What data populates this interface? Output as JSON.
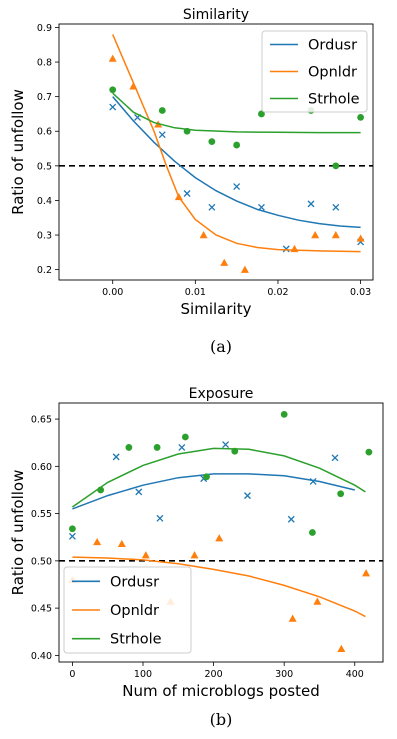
{
  "chart_data": [
    {
      "type": "scatter",
      "title": "Similarity",
      "xlabel": "Similarity",
      "ylabel": "Ratio of unfollow",
      "caption": "(a)",
      "xlim": [
        -0.0065,
        0.0315
      ],
      "ylim": [
        0.17,
        0.91
      ],
      "xticks": [
        "0.00",
        "0.01",
        "0.02",
        "0.03"
      ],
      "xtick_values": [
        0,
        0.01,
        0.02,
        0.03
      ],
      "yticks": [
        "0.2",
        "0.3",
        "0.4",
        "0.5",
        "0.6",
        "0.7",
        "0.8",
        "0.9"
      ],
      "ytick_values": [
        0.2,
        0.3,
        0.4,
        0.5,
        0.6,
        0.7,
        0.8,
        0.9
      ],
      "reference_line": 0.5,
      "legend_position": "top-right",
      "series": [
        {
          "name": "Ordusr",
          "color": "#1f77b4",
          "marker": "x",
          "x": [
            0.0,
            0.003,
            0.006,
            0.009,
            0.012,
            0.015,
            0.018,
            0.021,
            0.024,
            0.027,
            0.03
          ],
          "y": [
            0.67,
            0.64,
            0.59,
            0.42,
            0.38,
            0.44,
            0.38,
            0.26,
            0.39,
            0.38,
            0.28
          ],
          "fit_x": [
            0.0,
            0.0025,
            0.005,
            0.0075,
            0.01,
            0.0125,
            0.015,
            0.0175,
            0.02,
            0.0225,
            0.025,
            0.0275,
            0.03
          ],
          "fit_y": [
            0.7,
            0.63,
            0.568,
            0.513,
            0.466,
            0.428,
            0.398,
            0.374,
            0.357,
            0.343,
            0.333,
            0.326,
            0.322
          ]
        },
        {
          "name": "Opnldr",
          "color": "#ff7f0e",
          "marker": "^",
          "x": [
            0.0,
            0.0025,
            0.0055,
            0.008,
            0.011,
            0.0135,
            0.016,
            0.022,
            0.0245,
            0.027,
            0.03
          ],
          "y": [
            0.81,
            0.73,
            0.62,
            0.41,
            0.3,
            0.22,
            0.2,
            0.26,
            0.3,
            0.3,
            0.29
          ],
          "fit_x": [
            0.0,
            0.0025,
            0.005,
            0.0065,
            0.008,
            0.01,
            0.0125,
            0.015,
            0.0175,
            0.02,
            0.025,
            0.03
          ],
          "fit_y": [
            0.88,
            0.74,
            0.6,
            0.5,
            0.41,
            0.345,
            0.3,
            0.276,
            0.264,
            0.258,
            0.254,
            0.252
          ]
        },
        {
          "name": "Strhole",
          "color": "#2ca02c",
          "marker": "o",
          "x": [
            0.0,
            0.006,
            0.009,
            0.012,
            0.015,
            0.018,
            0.024,
            0.027,
            0.03
          ],
          "y": [
            0.72,
            0.66,
            0.6,
            0.57,
            0.56,
            0.65,
            0.66,
            0.5,
            0.64
          ],
          "fit_x": [
            0.0,
            0.0025,
            0.005,
            0.0075,
            0.01,
            0.015,
            0.02,
            0.025,
            0.03
          ],
          "fit_y": [
            0.71,
            0.655,
            0.625,
            0.61,
            0.603,
            0.598,
            0.597,
            0.596,
            0.596
          ]
        }
      ]
    },
    {
      "type": "scatter",
      "title": "Exposure",
      "xlabel": "Num of microblogs posted",
      "ylabel": "Ratio of unfollow",
      "caption": "(b)",
      "xlim": [
        -19,
        440
      ],
      "ylim": [
        0.393,
        0.667
      ],
      "xticks": [
        "0",
        "100",
        "200",
        "300",
        "400"
      ],
      "xtick_values": [
        0,
        100,
        200,
        300,
        400
      ],
      "yticks": [
        "0.40",
        "0.45",
        "0.50",
        "0.55",
        "0.60",
        "0.65"
      ],
      "ytick_values": [
        0.4,
        0.45,
        0.5,
        0.55,
        0.6,
        0.65
      ],
      "reference_line": 0.5,
      "legend_position": "bottom-left",
      "series": [
        {
          "name": "Ordusr",
          "color": "#1f77b4",
          "marker": "x",
          "x": [
            0,
            62,
            94,
            124,
            155,
            186,
            217,
            248,
            310,
            341,
            372
          ],
          "y": [
            0.526,
            0.61,
            0.573,
            0.545,
            0.62,
            0.587,
            0.623,
            0.569,
            0.544,
            0.584,
            0.609
          ],
          "fit_x": [
            0,
            50,
            100,
            150,
            200,
            250,
            300,
            350,
            400
          ],
          "fit_y": [
            0.555,
            0.569,
            0.58,
            0.588,
            0.592,
            0.592,
            0.59,
            0.584,
            0.575
          ]
        },
        {
          "name": "Opnldr",
          "color": "#ff7f0e",
          "marker": "^",
          "x": [
            0,
            35,
            70,
            104,
            139,
            173,
            208,
            312,
            347,
            381,
            416
          ],
          "y": [
            0.48,
            0.52,
            0.518,
            0.506,
            0.457,
            0.506,
            0.524,
            0.439,
            0.457,
            0.407,
            0.487
          ],
          "fit_x": [
            0,
            50,
            100,
            150,
            200,
            250,
            300,
            350,
            400,
            415
          ],
          "fit_y": [
            0.504,
            0.503,
            0.501,
            0.497,
            0.491,
            0.484,
            0.474,
            0.462,
            0.447,
            0.441
          ]
        },
        {
          "name": "Strhole",
          "color": "#2ca02c",
          "marker": "o",
          "x": [
            0,
            40,
            80,
            120,
            160,
            190,
            230,
            300,
            340,
            380,
            420
          ],
          "y": [
            0.534,
            0.575,
            0.62,
            0.62,
            0.631,
            0.589,
            0.616,
            0.655,
            0.53,
            0.571,
            0.615
          ],
          "fit_x": [
            0,
            50,
            100,
            150,
            200,
            250,
            300,
            350,
            400,
            415
          ],
          "fit_y": [
            0.557,
            0.583,
            0.601,
            0.613,
            0.619,
            0.618,
            0.611,
            0.598,
            0.58,
            0.573
          ]
        }
      ]
    }
  ]
}
